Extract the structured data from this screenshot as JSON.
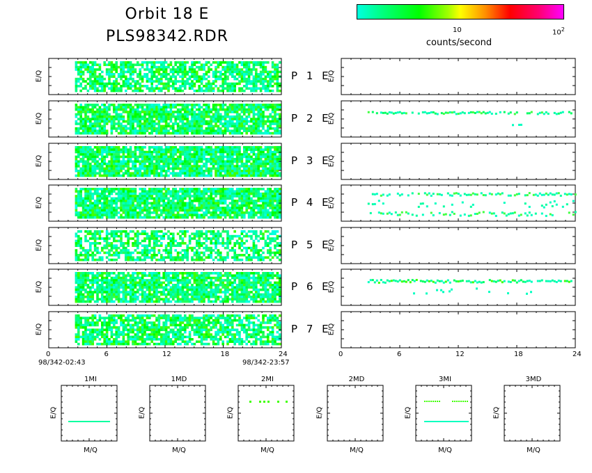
{
  "title_line1": "Orbit 18 E",
  "title_line2": "PLS98342.RDR",
  "colorbar": {
    "label": "counts/second",
    "tick_10": "10",
    "tick_100_base": "10",
    "tick_100_exp": "2",
    "colors": [
      "#00ffe0",
      "#00ff80",
      "#00ff00",
      "#a0ff00",
      "#ffff00",
      "#ff9000",
      "#ff0000",
      "#ff0070",
      "#ff00ff"
    ]
  },
  "panel_ylabel": "E/Q",
  "rows": [
    {
      "label": "P 1 E"
    },
    {
      "label": "P 2 E"
    },
    {
      "label": "P 3 E"
    },
    {
      "label": "P 4 E"
    },
    {
      "label": "P 5 E"
    },
    {
      "label": "P 6 E"
    },
    {
      "label": "P 7 E"
    }
  ],
  "x_ticks": [
    "0",
    "6",
    "12",
    "18",
    "24"
  ],
  "time_start": "98/342-02:43",
  "time_end": "98/342-23:57",
  "small_panels": [
    {
      "title": "1MI",
      "xlabel": "M/Q",
      "ylabel": "E/Q"
    },
    {
      "title": "1MD",
      "xlabel": "M/Q",
      "ylabel": "E/Q"
    },
    {
      "title": "2MI",
      "xlabel": "M/Q",
      "ylabel": "E/Q"
    },
    {
      "title": "2MD",
      "xlabel": "M/Q",
      "ylabel": "E/Q"
    },
    {
      "title": "3MI",
      "xlabel": "M/Q",
      "ylabel": "E/Q"
    },
    {
      "title": "3MD",
      "xlabel": "M/Q",
      "ylabel": "E/Q"
    }
  ],
  "chart_data": {
    "type": "heatmap",
    "x_range_hours": [
      0,
      24
    ],
    "left_panels_data_extent_hours": [
      2.7,
      24
    ],
    "right_panels_events": [
      {
        "panel": "P 2 E",
        "band": "upper",
        "x_range_hours": [
          2.7,
          23.5
        ]
      },
      {
        "panel": "P 4 E",
        "band": "upper+lower scattered",
        "x_range_hours": [
          2.7,
          24
        ]
      },
      {
        "panel": "P 6 E",
        "band": "upper",
        "x_range_hours": [
          2.7,
          23.5
        ]
      }
    ],
    "small_panel_bands": [
      {
        "panel": "1MI",
        "bands": [
          "cyan"
        ]
      },
      {
        "panel": "2MI",
        "bands": [
          "green"
        ]
      },
      {
        "panel": "3MI",
        "bands": [
          "green",
          "cyan"
        ]
      }
    ]
  }
}
